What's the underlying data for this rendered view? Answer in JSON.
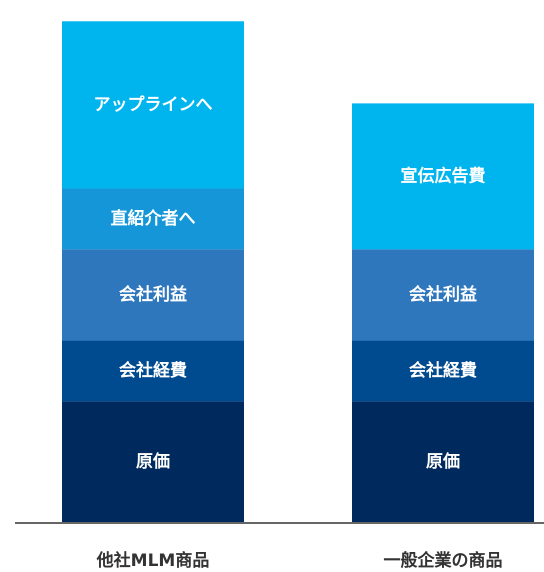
{
  "chart_data": {
    "type": "bar",
    "stacked": true,
    "categories": [
      "他社MLM商品",
      "一般企業の商品"
    ],
    "bars": [
      {
        "category": "他社MLM商品",
        "segments": [
          {
            "label": "原価",
            "value": 2.0,
            "color": "#002a5e"
          },
          {
            "label": "会社経費",
            "value": 1.0,
            "color": "#004a8f"
          },
          {
            "label": "会社利益",
            "value": 1.5,
            "color": "#2e77bd"
          },
          {
            "label": "直紹介者へ",
            "value": 1.0,
            "color": "#1496d8"
          },
          {
            "label": "アップラインへ",
            "value": 2.75,
            "color": "#00b4ee"
          }
        ]
      },
      {
        "category": "一般企業の商品",
        "segments": [
          {
            "label": "原価",
            "value": 2.0,
            "color": "#002a5e"
          },
          {
            "label": "会社経費",
            "value": 1.0,
            "color": "#004a8f"
          },
          {
            "label": "会社利益",
            "value": 1.5,
            "color": "#2e77bd"
          },
          {
            "label": "宣伝広告費",
            "value": 2.4,
            "color": "#00b4ee"
          }
        ]
      }
    ],
    "ylim": [
      0,
      8.6
    ],
    "grid": false,
    "axis_color": "#666666"
  }
}
